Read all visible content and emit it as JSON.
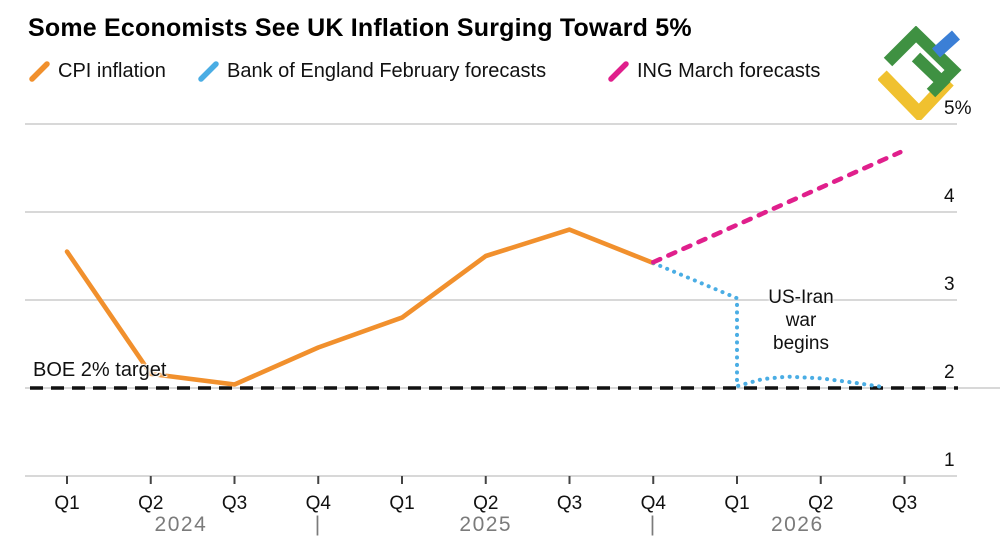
{
  "header": {
    "title": "Some Economists See UK Inflation Surging Toward 5%",
    "legend": [
      {
        "label": "CPI inflation",
        "color": "#f1902d",
        "style": "solid"
      },
      {
        "label": "Bank of England February forecasts",
        "color": "#4aade4",
        "style": "dotted"
      },
      {
        "label": "ING March forecasts",
        "color": "#e01f8c",
        "style": "dashed"
      }
    ]
  },
  "logo": {
    "name": "LiteFinance",
    "green": "#3f9142",
    "blue": "#3b7fd6",
    "yellow": "#f0c12f"
  },
  "chart_data": {
    "type": "line",
    "title": "Some Economists See UK Inflation Surging Toward 5%",
    "xlabel": "",
    "ylabel": "",
    "ylim": [
      1,
      5
    ],
    "yticks": [
      1,
      2,
      3,
      4,
      5
    ],
    "ytick_labels": [
      "1",
      "2",
      "3",
      "4",
      "5%"
    ],
    "grid": true,
    "legend_position": "top",
    "x_categories": [
      "Q1",
      "Q2",
      "Q3",
      "Q4",
      "Q1",
      "Q2",
      "Q3",
      "Q4",
      "Q1",
      "Q2",
      "Q3"
    ],
    "year_row": [
      {
        "label": "2024",
        "x_index": 1.36
      },
      {
        "label": "|",
        "x_index": 3
      },
      {
        "label": "2025",
        "x_index": 5
      },
      {
        "label": "|",
        "x_index": 7
      },
      {
        "label": "2026",
        "x_index": 8.72
      }
    ],
    "series": [
      {
        "name": "CPI inflation",
        "color": "#f1902d",
        "style": "solid",
        "points": [
          [
            0,
            3.55
          ],
          [
            1,
            2.16
          ],
          [
            2,
            2.04
          ],
          [
            3,
            2.46
          ],
          [
            4,
            2.8
          ],
          [
            5,
            3.5
          ],
          [
            6,
            3.8
          ],
          [
            7,
            3.42
          ]
        ]
      },
      {
        "name": "Bank of England February forecasts",
        "color": "#4aade4",
        "style": "dotted",
        "points": [
          [
            7,
            3.42
          ],
          [
            8,
            3.02
          ],
          [
            8,
            2.02
          ],
          [
            8.3,
            2.1
          ],
          [
            8.6,
            2.13
          ],
          [
            9,
            2.11
          ],
          [
            9.4,
            2.06
          ],
          [
            9.75,
            2.01
          ]
        ]
      },
      {
        "name": "ING March forecasts",
        "color": "#e01f8c",
        "style": "dashed",
        "points": [
          [
            7,
            3.43
          ],
          [
            9.95,
            4.68
          ]
        ]
      }
    ],
    "target_line": {
      "label": "BOE 2% target",
      "value": 2,
      "color": "#111111",
      "style": "dashed"
    },
    "annotation": {
      "lines": [
        "US-Iran",
        "war",
        "begins"
      ]
    }
  }
}
